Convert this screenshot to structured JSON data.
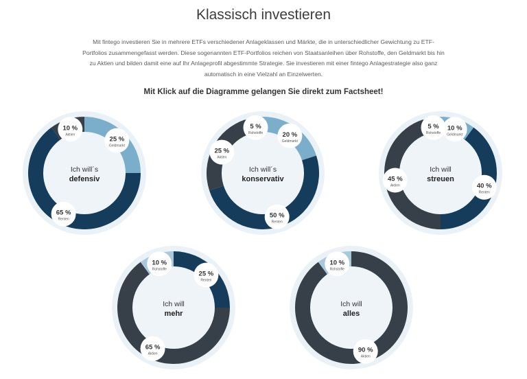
{
  "page": {
    "title": "Klassisch investieren",
    "intro": "Mit fintego investieren Sie in mehrere ETFs verschiedener Anlageklassen und Märkte, die in unterschiedlicher Gewichtung zu ETF-Portfolios zusammengefasst werden. Diese sogenannten ETF-Portfolios reichen von Staatsanleihen über Rohstoffe, den Geldmarkt bis hin zu Aktien und bilden damit eine auf Ihr Anlageprofil abgestimmte Strategie. Sie investieren mit einer fintego Anlagestrategie also ganz automatisch in eine Vielzahl an Einzelwerten.",
    "subheadline": "Mit Klick auf die Diagramme gelangen Sie direkt zum Factsheet!"
  },
  "colors": {
    "Aktien": "#373f48",
    "Renten": "#153d5b",
    "Geldmarkt": "#7aaecb",
    "Rohstoffe": "#a9c8da",
    "halo": "#eaf2f7",
    "center": "#eef4f8"
  },
  "chart_data": [
    {
      "type": "pie",
      "center_line1": "Ich will´s",
      "center_line2": "defensiv",
      "slices": [
        {
          "label": "Geldmarkt",
          "value": 25,
          "text": "25 %"
        },
        {
          "label": "Renten",
          "value": 65,
          "text": "65 %"
        },
        {
          "label": "Aktien",
          "value": 10,
          "text": "10 %"
        }
      ]
    },
    {
      "type": "pie",
      "center_line1": "Ich will´s",
      "center_line2": "konservativ",
      "slices": [
        {
          "label": "Geldmarkt",
          "value": 20,
          "text": "20 %"
        },
        {
          "label": "Renten",
          "value": 50,
          "text": "50 %"
        },
        {
          "label": "Aktien",
          "value": 25,
          "text": "25 %"
        },
        {
          "label": "Rohstoffe",
          "value": 5,
          "text": "5 %"
        }
      ]
    },
    {
      "type": "pie",
      "center_line1": "Ich will",
      "center_line2": "streuen",
      "slices": [
        {
          "label": "Geldmarkt",
          "value": 10,
          "text": "10 %"
        },
        {
          "label": "Renten",
          "value": 40,
          "text": "40 %"
        },
        {
          "label": "Aktien",
          "value": 45,
          "text": "45 %"
        },
        {
          "label": "Rohstoffe",
          "value": 5,
          "text": "5 %"
        }
      ]
    },
    {
      "type": "pie",
      "center_line1": "Ich will",
      "center_line2": "mehr",
      "slices": [
        {
          "label": "Renten",
          "value": 25,
          "text": "25 %"
        },
        {
          "label": "Aktien",
          "value": 65,
          "text": "65 %"
        },
        {
          "label": "Rohstoffe",
          "value": 10,
          "text": "10 %"
        }
      ]
    },
    {
      "type": "pie",
      "center_line1": "Ich will",
      "center_line2": "alles",
      "slices": [
        {
          "label": "Aktien",
          "value": 90,
          "text": "90 %"
        },
        {
          "label": "Rohstoffe",
          "value": 10,
          "text": "10 %"
        }
      ]
    }
  ]
}
